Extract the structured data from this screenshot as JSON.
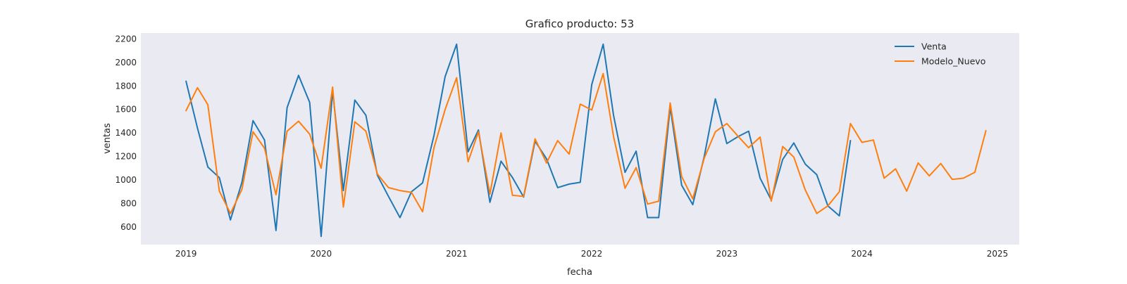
{
  "chart_data": {
    "type": "line",
    "title": "Grafico producto: 53",
    "xlabel": "fecha",
    "ylabel": "ventas",
    "xlim": [
      "2018-09-01",
      "2025-03-01"
    ],
    "ylim": [
      450,
      2250
    ],
    "x_ticks": [
      "2019",
      "2020",
      "2021",
      "2022",
      "2023",
      "2024",
      "2025"
    ],
    "y_ticks": [
      600,
      800,
      1000,
      1200,
      1400,
      1600,
      1800,
      2000,
      2200
    ],
    "grid": false,
    "background": "#eaeaf2",
    "legend": {
      "position": "top-right"
    },
    "series": [
      {
        "name": "Venta",
        "color": "#1f77b4",
        "start": "2019-01",
        "values": [
          1840,
          1440,
          1110,
          1020,
          660,
          980,
          1505,
          1340,
          570,
          1615,
          1890,
          1660,
          520,
          1760,
          910,
          1680,
          1550,
          1040,
          860,
          680,
          900,
          975,
          1380,
          1880,
          2155,
          1240,
          1425,
          810,
          1160,
          1020,
          855,
          1330,
          1180,
          935,
          965,
          980,
          1810,
          2155,
          1550,
          1065,
          1245,
          680,
          680,
          1620,
          955,
          790,
          1200,
          1690,
          1310,
          1370,
          1415,
          1015,
          830,
          1175,
          1315,
          1135,
          1045,
          780,
          695,
          1335
        ]
      },
      {
        "name": "Modelo_Nuevo",
        "color": "#ff7f0e",
        "start": "2019-01",
        "values": [
          1590,
          1785,
          1640,
          905,
          715,
          920,
          1410,
          1270,
          875,
          1415,
          1500,
          1390,
          1100,
          1790,
          770,
          1495,
          1415,
          1050,
          935,
          910,
          895,
          730,
          1275,
          1600,
          1870,
          1155,
          1410,
          880,
          1400,
          870,
          860,
          1350,
          1145,
          1335,
          1220,
          1645,
          1595,
          1905,
          1370,
          930,
          1105,
          795,
          820,
          1655,
          1030,
          840,
          1185,
          1410,
          1480,
          1370,
          1275,
          1365,
          820,
          1285,
          1195,
          915,
          715,
          780,
          900,
          1480,
          1320,
          1340,
          1015,
          1095,
          905,
          1145,
          1035,
          1140,
          1005,
          1015,
          1065,
          1420
        ]
      }
    ]
  }
}
